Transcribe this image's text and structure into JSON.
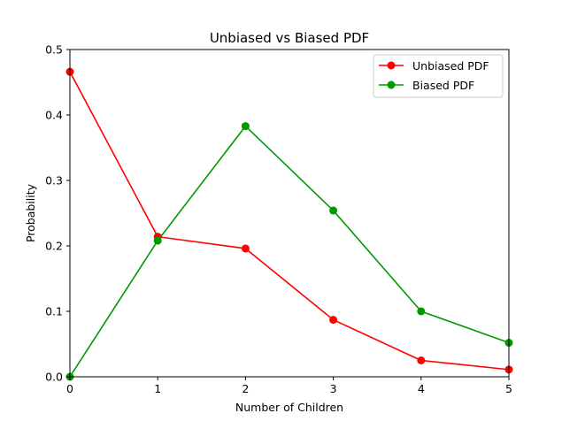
{
  "chart_data": {
    "type": "line",
    "title": "Unbiased vs Biased PDF",
    "xlabel": "Number of Children",
    "ylabel": "Probability",
    "xlim": [
      0,
      5
    ],
    "ylim": [
      0,
      0.5
    ],
    "x": [
      0,
      1,
      2,
      3,
      4,
      5
    ],
    "xticks": [
      "0",
      "1",
      "2",
      "3",
      "4",
      "5"
    ],
    "yticks": [
      "0.0",
      "0.1",
      "0.2",
      "0.3",
      "0.4",
      "0.5"
    ],
    "grid": false,
    "legend_position": "top-right",
    "series": [
      {
        "name": "Unbiased PDF",
        "color": "#ff0000",
        "values": [
          0.466,
          0.214,
          0.196,
          0.087,
          0.025,
          0.011
        ]
      },
      {
        "name": "Biased PDF",
        "color": "#009900",
        "values": [
          0.0,
          0.208,
          0.383,
          0.254,
          0.1,
          0.052
        ]
      }
    ]
  }
}
